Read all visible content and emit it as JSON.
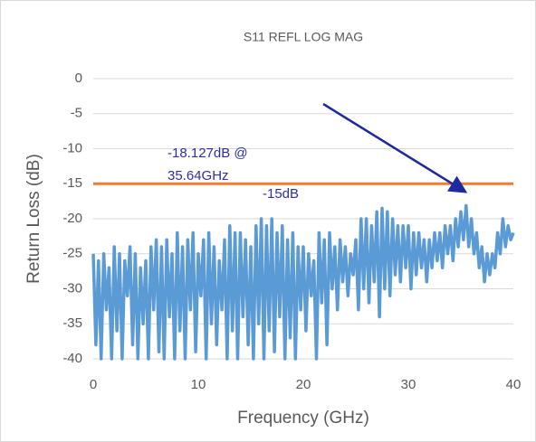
{
  "chart_data": {
    "type": "line",
    "title": "S11 REFL  LOG MAG",
    "xlabel": "Frequency (GHz)",
    "ylabel": "Return Loss (dB)",
    "xlim": [
      0,
      40
    ],
    "ylim": [
      -40,
      0
    ],
    "xticks": [
      0,
      10,
      20,
      30,
      40
    ],
    "yticks": [
      0,
      -5,
      -10,
      -15,
      -20,
      -25,
      -30,
      -35,
      -40
    ],
    "grid": true,
    "annotations": [
      "-18.127dB @",
      "35.64GHz",
      "-15dB"
    ],
    "series": [
      {
        "color": "#5b9bd5",
        "x": [
          0,
          0.25,
          0.5,
          0.75,
          1,
          1.25,
          1.5,
          1.75,
          2,
          2.25,
          2.5,
          2.75,
          3,
          3.25,
          3.5,
          3.75,
          4,
          4.25,
          4.5,
          4.75,
          5,
          5.25,
          5.5,
          5.75,
          6,
          6.25,
          6.5,
          6.75,
          7,
          7.25,
          7.5,
          7.75,
          8,
          8.25,
          8.5,
          8.75,
          9,
          9.25,
          9.5,
          9.75,
          10,
          10.25,
          10.5,
          10.75,
          11,
          11.25,
          11.5,
          11.75,
          12,
          12.25,
          12.5,
          12.75,
          13,
          13.25,
          13.5,
          13.75,
          14,
          14.25,
          14.5,
          14.75,
          15,
          15.25,
          15.5,
          15.75,
          16,
          16.25,
          16.5,
          16.75,
          17,
          17.25,
          17.5,
          17.75,
          18,
          18.25,
          18.5,
          18.75,
          19,
          19.25,
          19.5,
          19.75,
          20,
          20.25,
          20.5,
          20.75,
          21,
          21.25,
          21.5,
          21.75,
          22,
          22.25,
          22.5,
          22.75,
          23,
          23.25,
          23.5,
          23.75,
          24,
          24.25,
          24.5,
          24.75,
          25,
          25.25,
          25.5,
          25.75,
          26,
          26.25,
          26.5,
          26.75,
          27,
          27.25,
          27.5,
          27.75,
          28,
          28.25,
          28.5,
          28.75,
          29,
          29.25,
          29.5,
          29.75,
          30,
          30.25,
          30.5,
          30.75,
          31,
          31.25,
          31.5,
          31.75,
          32,
          32.25,
          32.5,
          32.75,
          33,
          33.25,
          33.5,
          33.75,
          34,
          34.25,
          34.5,
          34.75,
          35,
          35.25,
          35.5,
          35.75,
          36,
          36.25,
          36.5,
          36.75,
          37,
          37.25,
          37.5,
          37.75,
          38,
          38.25,
          38.5,
          38.75,
          39,
          39.25,
          39.5,
          39.75,
          40
        ],
        "values": [
          -25,
          -38,
          -26,
          -40,
          -25,
          -33,
          -27,
          -40,
          -24,
          -36,
          -25,
          -40,
          -26,
          -31,
          -24,
          -38,
          -25,
          -40,
          -27,
          -35,
          -26,
          -40,
          -24,
          -33,
          -23,
          -39,
          -24,
          -40,
          -23,
          -34,
          -25,
          -40,
          -22,
          -36,
          -24,
          -40,
          -23,
          -33,
          -22,
          -39,
          -25,
          -31,
          -23,
          -40,
          -22,
          -35,
          -24,
          -38,
          -26,
          -33,
          -23,
          -40,
          -21,
          -36,
          -22,
          -40,
          -22,
          -34,
          -23,
          -38,
          -24,
          -40,
          -21,
          -35,
          -20,
          -40,
          -21,
          -36,
          -20,
          -39,
          -22,
          -34,
          -21,
          -40,
          -23,
          -37,
          -22,
          -40,
          -24,
          -33,
          -24,
          -36,
          -25,
          -31,
          -26,
          -40,
          -22,
          -32,
          -23,
          -38,
          -22,
          -30,
          -24,
          -33,
          -23,
          -29,
          -24,
          -31,
          -25,
          -28,
          -23,
          -33,
          -20,
          -30,
          -20,
          -32,
          -21,
          -29,
          -19,
          -34,
          -18.5,
          -30,
          -19,
          -31,
          -20,
          -28,
          -21,
          -29,
          -21,
          -27,
          -21,
          -30,
          -22,
          -28,
          -22,
          -27,
          -23,
          -29,
          -23,
          -27,
          -22,
          -26,
          -22,
          -27,
          -21,
          -25,
          -21,
          -26,
          -20,
          -24,
          -19,
          -23,
          -18.127,
          -24,
          -20,
          -25,
          -22,
          -27,
          -24,
          -29,
          -25,
          -28,
          -25,
          -27,
          -22,
          -25,
          -20,
          -24,
          -21,
          -23,
          -22
        ]
      },
      {
        "color": "#ed7d31",
        "x": [
          0,
          40
        ],
        "values": [
          -15,
          -15
        ]
      }
    ]
  }
}
